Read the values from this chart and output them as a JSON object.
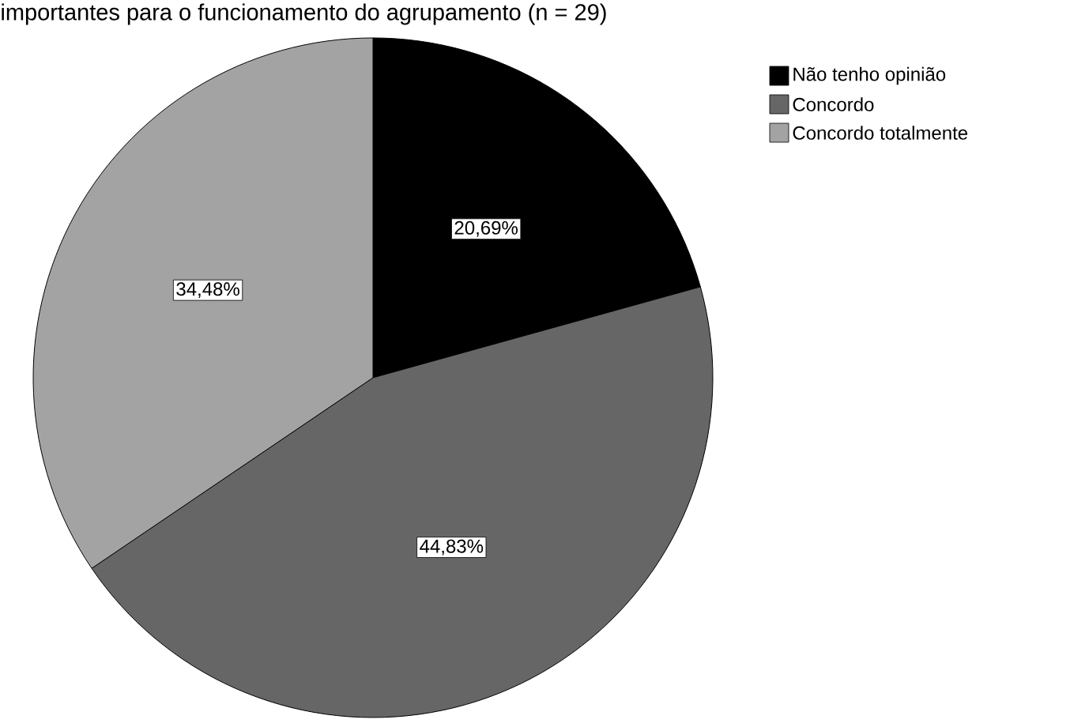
{
  "chart_data": {
    "type": "pie",
    "title": "importantes para o funcionamento do agrupamento (n = 29)",
    "categories": [
      "Não tenho opinião",
      "Concordo",
      "Concordo totalmente"
    ],
    "values": [
      20.69,
      44.83,
      34.48
    ],
    "colors": [
      "#000000",
      "#666666",
      "#a3a3a3"
    ],
    "value_labels": [
      "20,69%",
      "44,83%",
      "34,48%"
    ],
    "legend": "top right"
  }
}
